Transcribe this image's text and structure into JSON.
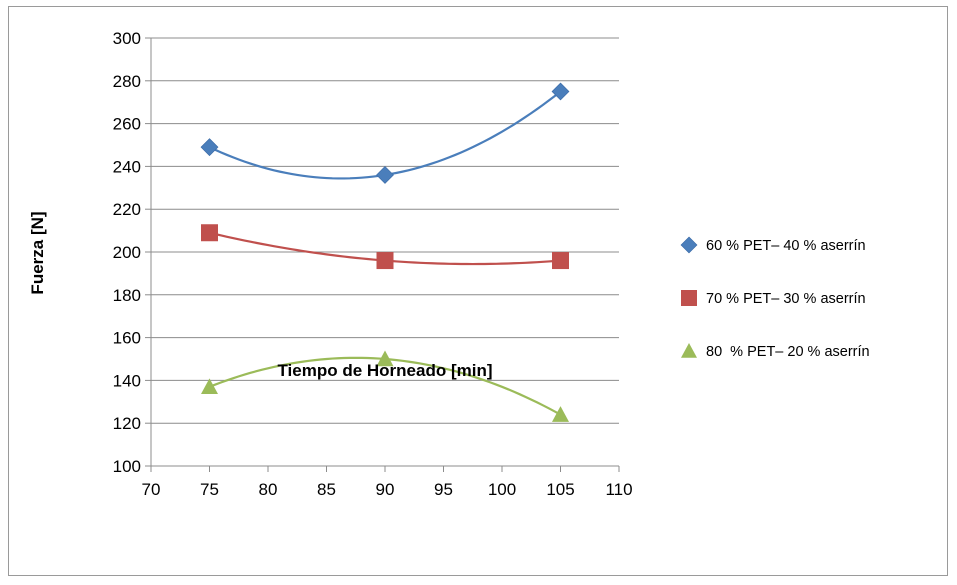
{
  "chart_data": {
    "type": "scatter",
    "title": "",
    "xlabel": "Tiempo de Horneado [min]",
    "ylabel": "Fuerza [N]",
    "xlim": [
      70,
      110
    ],
    "ylim": [
      100,
      300
    ],
    "xticks": [
      70,
      75,
      80,
      85,
      90,
      95,
      100,
      105,
      110
    ],
    "yticks": [
      100,
      120,
      140,
      160,
      180,
      200,
      220,
      240,
      260,
      280,
      300
    ],
    "grid": "horizontal",
    "legend_position": "right",
    "trendline": "polynomial-2",
    "series": [
      {
        "name": "60 % PET– 40 % aserrín",
        "marker": "diamond",
        "color": "#4A7EBB",
        "x": [
          75,
          90,
          105
        ],
        "y": [
          249,
          236,
          275
        ]
      },
      {
        "name": "70 % PET– 30 % aserrín",
        "marker": "square",
        "color": "#C0504D",
        "x": [
          75,
          90,
          105
        ],
        "y": [
          209,
          196,
          196
        ]
      },
      {
        "name": "80  % PET– 20 % aserrín",
        "marker": "triangle",
        "color": "#9BBB59",
        "x": [
          75,
          90,
          105
        ],
        "y": [
          137,
          150,
          124
        ]
      }
    ]
  }
}
